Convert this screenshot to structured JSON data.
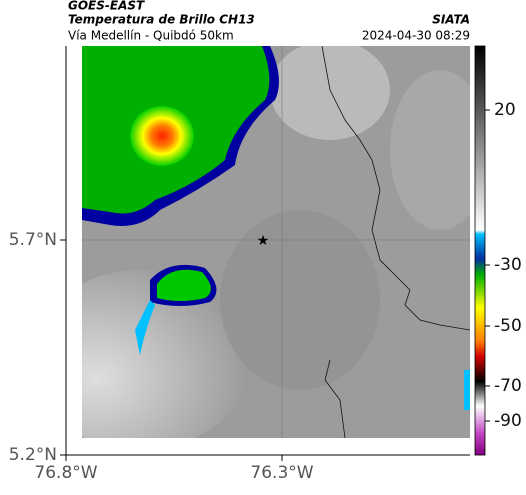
{
  "header": {
    "source": "GOES-EAST",
    "title": "Temperatura de Brillo CH13",
    "subtitle": "Vía Medellín - Quibdó 50km",
    "credit": "SIATA",
    "timestamp": "2024-04-30 08:29"
  },
  "map": {
    "yticks": [
      {
        "value": 5.7,
        "label": "5.7°N"
      },
      {
        "value": 5.2,
        "label": "5.2°N"
      }
    ],
    "xticks": [
      {
        "value": -76.8,
        "label": "76.8°W"
      },
      {
        "value": -76.3,
        "label": "76.3°W"
      }
    ]
  },
  "colorbar": {
    "ticks": [
      20,
      -30,
      -50,
      -70,
      -90
    ]
  }
}
